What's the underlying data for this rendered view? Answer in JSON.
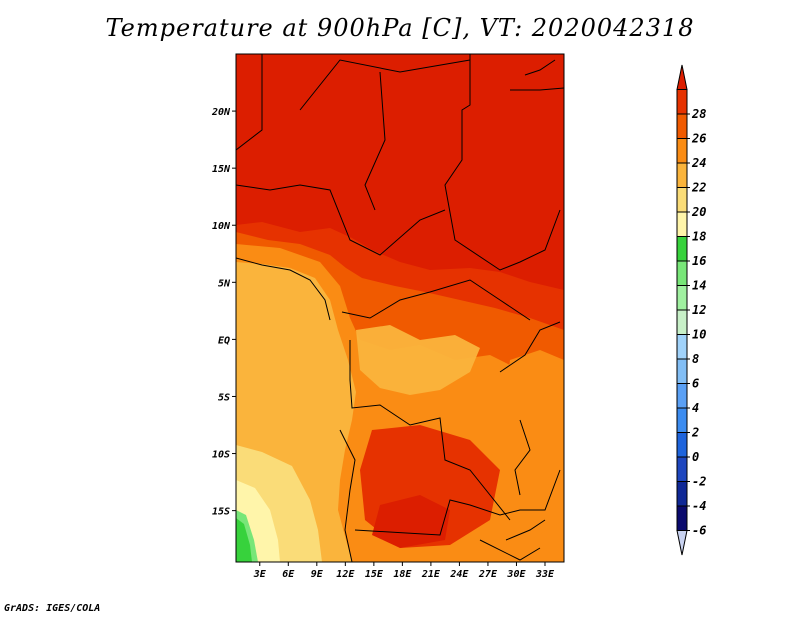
{
  "title": "Temperature at 900hPa [C], VT: 2020042318",
  "footer": "GrADS: IGES/COLA",
  "colors": {
    "land_hot": "#dc1e00",
    "c26": "#e63200",
    "c24": "#f05a00",
    "c22": "#fa8c14",
    "c20": "#fab43c",
    "c18": "#fadc78",
    "c16": "#fff5aa",
    "green_dark": "#37d23c",
    "green_mid": "#78e678",
    "border": "#000000"
  },
  "chart_data": {
    "type": "heatmap",
    "title": "Temperature at 900hPa [C], VT: 2020042318",
    "x_ticks": [
      "3E",
      "6E",
      "9E",
      "12E",
      "15E",
      "18E",
      "21E",
      "24E",
      "27E",
      "30E",
      "33E"
    ],
    "x_values": [
      3,
      6,
      9,
      12,
      15,
      18,
      21,
      24,
      27,
      30,
      33
    ],
    "y_ticks": [
      "20N",
      "15N",
      "10N",
      "5N",
      "EQ",
      "5S",
      "10S",
      "15S"
    ],
    "y_values": [
      20,
      15,
      10,
      5,
      0,
      -5,
      -10,
      -15
    ],
    "xlim": [
      0.5,
      35
    ],
    "ylim": [
      -19.5,
      25
    ],
    "colorbar": {
      "levels": [
        "-6",
        "-4",
        "-2",
        "0",
        "2",
        "4",
        "6",
        "8",
        "10",
        "12",
        "14",
        "16",
        "18",
        "20",
        "22",
        "24",
        "26",
        "28"
      ],
      "colors": [
        "#c8d2f0",
        "#0a0a6e",
        "#0f2896",
        "#1e46be",
        "#1e64dc",
        "#3c8cf0",
        "#5aa0f5",
        "#82bef5",
        "#a0d2fa",
        "#c8f0c8",
        "#a0f0a0",
        "#78e678",
        "#37d23c",
        "#fff5aa",
        "#fadc78",
        "#fab43c",
        "#fa8c14",
        "#f05a00",
        "#e63200",
        "#dc1e00"
      ]
    }
  }
}
